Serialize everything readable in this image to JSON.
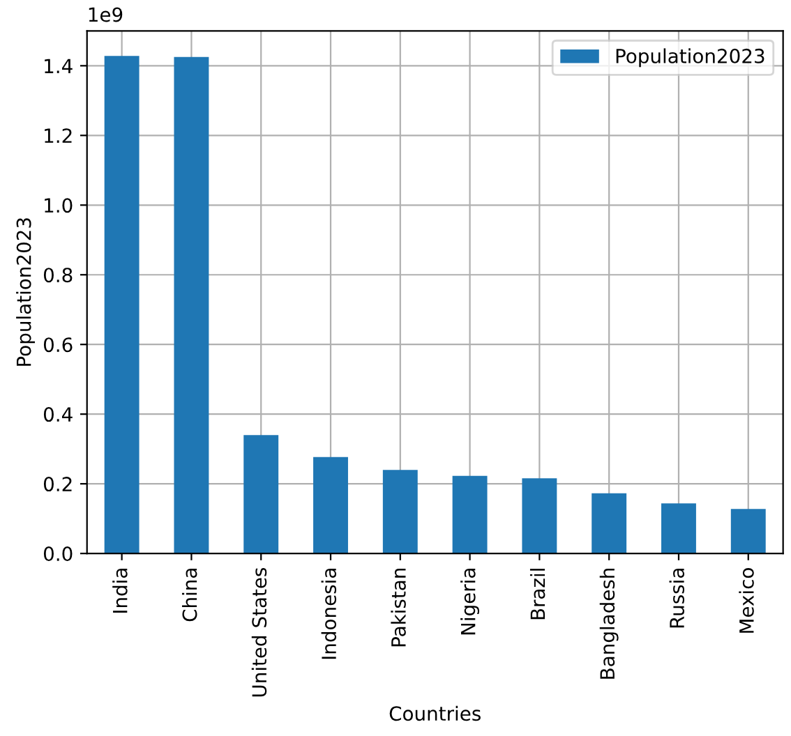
{
  "chart_data": {
    "type": "bar",
    "categories": [
      "India",
      "China",
      "United States",
      "Indonesia",
      "Pakistan",
      "Nigeria",
      "Brazil",
      "Bangladesh",
      "Russia",
      "Mexico"
    ],
    "series": [
      {
        "name": "Population2023",
        "color": "#1f77b4",
        "values": [
          1.428,
          1.425,
          0.34,
          0.277,
          0.24,
          0.223,
          0.216,
          0.173,
          0.144,
          0.128
        ]
      }
    ],
    "xlabel": "Countries",
    "ylabel": "Population2023",
    "ylim": [
      0,
      1.5
    ],
    "yticks": [
      {
        "value": 0,
        "label": "0.0"
      },
      0.2,
      0.4,
      0.6,
      0.8,
      {
        "value": 1,
        "label": "1.0"
      },
      1.2,
      1.4
    ],
    "annotations": [
      "1e9"
    ],
    "grid": true,
    "legend": "top right"
  }
}
